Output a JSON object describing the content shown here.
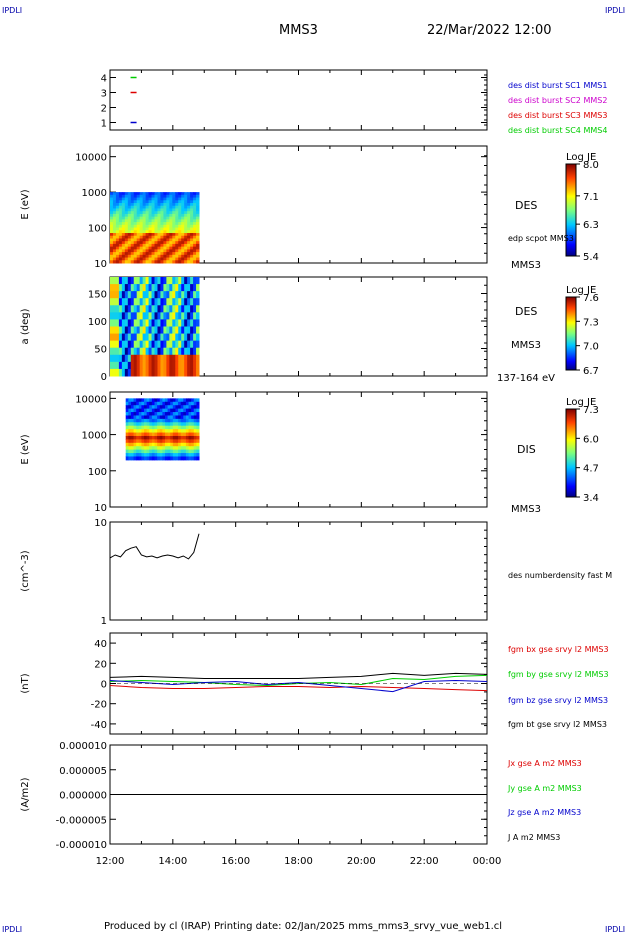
{
  "header": {
    "corner_label": "IPDLI",
    "spacecraft": "MMS3",
    "datetime": "22/Mar/2022 12:00"
  },
  "footer": {
    "text": "Produced by cl (IRAP)   Printing date: 02/Jan/2025   mms_mms3_srvy_vue_web1.cl"
  },
  "colors": {
    "blue": "#0000cc",
    "magenta": "#cc00cc",
    "red": "#dd0000",
    "green": "#00cc00",
    "black": "#000000"
  },
  "chart_data": [
    {
      "type": "scatter",
      "panel": "burst-mode",
      "ylim": [
        0.5,
        4.5
      ],
      "yticks": [
        "1",
        "2",
        "3",
        "4"
      ],
      "series": [
        {
          "name": "des dist burst SC1 MMS1",
          "color": "#0000cc",
          "x": [
            "12:45"
          ],
          "y": [
            1
          ]
        },
        {
          "name": "des dist burst SC2 MMS2",
          "color": "#cc00cc",
          "x": [],
          "y": []
        },
        {
          "name": "des dist burst SC3 MMS3",
          "color": "#dd0000",
          "x": [
            "12:45"
          ],
          "y": [
            3
          ]
        },
        {
          "name": "des dist burst SC4 MMS4",
          "color": "#00cc00",
          "x": [
            "12:45"
          ],
          "y": [
            4
          ]
        }
      ]
    },
    {
      "type": "heatmap",
      "panel": "des-energy",
      "ylabel": "E (eV)",
      "yscale": "log",
      "ylim": [
        10,
        20000
      ],
      "yticks": [
        "10",
        "100",
        "1000",
        "10000"
      ],
      "data_time_range": [
        "12:00",
        "14:50"
      ],
      "data_energy_range": [
        10,
        1000
      ],
      "label": "DES",
      "sublabel": "edp scpot MMS3",
      "spacecraft_label": "MMS3",
      "colorbar": {
        "title": "Log JE",
        "ticks": [
          "8.0",
          "7.1",
          "6.3",
          "5.4"
        ],
        "min": 5.4,
        "max": 8.0
      }
    },
    {
      "type": "heatmap",
      "panel": "des-pitch-angle",
      "ylabel": "a (deg)",
      "ylim": [
        0,
        180
      ],
      "yticks": [
        "0",
        "50",
        "100",
        "150"
      ],
      "data_time_range": [
        "12:00",
        "14:50"
      ],
      "label": "DES",
      "spacecraft_label": "MMS3",
      "energy_band": "137-164 eV",
      "colorbar": {
        "title": "Log JE",
        "ticks": [
          "7.6",
          "7.3",
          "7.0",
          "6.7"
        ],
        "min": 6.7,
        "max": 7.6
      }
    },
    {
      "type": "heatmap",
      "panel": "dis-energy",
      "ylabel": "E (eV)",
      "yscale": "log",
      "ylim": [
        10,
        15000
      ],
      "yticks": [
        "10",
        "100",
        "1000",
        "10000"
      ],
      "data_time_range": [
        "12:30",
        "14:50"
      ],
      "data_energy_range": [
        200,
        10000
      ],
      "label": "DIS",
      "spacecraft_label": "MMS3",
      "colorbar": {
        "title": "Log JE",
        "ticks": [
          "7.3",
          "6.0",
          "4.7",
          "3.4"
        ],
        "min": 3.4,
        "max": 7.3
      }
    },
    {
      "type": "line",
      "panel": "density",
      "ylabel": "(cm^-3)",
      "yscale": "log",
      "ylim": [
        1,
        10
      ],
      "yticks": [
        "1",
        "10"
      ],
      "series": [
        {
          "name": "des numberdensity fast M",
          "color": "#000000",
          "x": [
            "12:00",
            "12:10",
            "12:20",
            "12:30",
            "12:40",
            "12:50",
            "13:00",
            "13:10",
            "13:20",
            "13:30",
            "13:40",
            "13:50",
            "14:00",
            "14:10",
            "14:20",
            "14:30",
            "14:40",
            "14:50"
          ],
          "y": [
            4.3,
            4.6,
            4.4,
            5.1,
            5.4,
            5.6,
            4.6,
            4.4,
            4.5,
            4.3,
            4.5,
            4.6,
            4.5,
            4.3,
            4.5,
            4.2,
            4.9,
            7.6
          ]
        }
      ]
    },
    {
      "type": "line",
      "panel": "magnetic-field",
      "ylabel": "(nT)",
      "ylim": [
        -50,
        50
      ],
      "yticks": [
        "-40",
        "-20",
        "0",
        "20",
        "40"
      ],
      "series": [
        {
          "name": "fgm bx gse srvy l2 MMS3",
          "color": "#dd0000",
          "x": [
            "12:00",
            "13:00",
            "14:00",
            "15:00",
            "16:00",
            "17:00",
            "18:00",
            "19:00",
            "20:00",
            "21:00",
            "22:00",
            "23:00",
            "00:00"
          ],
          "y": [
            -2,
            -4,
            -5,
            -5,
            -4,
            -3,
            -3,
            -4,
            -3,
            -4,
            -5,
            -6,
            -7
          ]
        },
        {
          "name": "fgm by gse srvy l2 MMS3",
          "color": "#00cc00",
          "x": [
            "12:00",
            "13:00",
            "14:00",
            "15:00",
            "16:00",
            "17:00",
            "18:00",
            "19:00",
            "20:00",
            "21:00",
            "22:00",
            "23:00",
            "00:00"
          ],
          "y": [
            2,
            3,
            2,
            1,
            -1,
            -2,
            0,
            1,
            -1,
            5,
            4,
            7,
            8
          ]
        },
        {
          "name": "fgm bz gse srvy l2 MMS3",
          "color": "#0000cc",
          "x": [
            "12:00",
            "13:00",
            "14:00",
            "15:00",
            "16:00",
            "17:00",
            "18:00",
            "19:00",
            "20:00",
            "21:00",
            "22:00",
            "23:00",
            "00:00"
          ],
          "y": [
            3,
            1,
            -1,
            1,
            2,
            -1,
            1,
            -2,
            -5,
            -8,
            2,
            3,
            2
          ]
        },
        {
          "name": "fgm bt gse srvy l2 MMS3",
          "color": "#000000",
          "x": [
            "12:00",
            "13:00",
            "14:00",
            "15:00",
            "16:00",
            "17:00",
            "18:00",
            "19:00",
            "20:00",
            "21:00",
            "22:00",
            "23:00",
            "00:00"
          ],
          "y": [
            6,
            7,
            6,
            5,
            5,
            5,
            5,
            6,
            7,
            10,
            8,
            10,
            9
          ]
        }
      ]
    },
    {
      "type": "line",
      "panel": "current-density",
      "ylabel": "(A/m2)",
      "ylim": [
        -1e-05,
        1e-05
      ],
      "yticks": [
        "-0.000010",
        "-0.000005",
        "0.000000",
        "0.000005",
        "0.000010"
      ],
      "xticks": [
        "12:00",
        "14:00",
        "16:00",
        "18:00",
        "20:00",
        "22:00",
        "00:00"
      ],
      "series": [
        {
          "name": "Jx gse A m2 MMS3",
          "color": "#dd0000",
          "x": [],
          "y": []
        },
        {
          "name": "Jy gse A m2 MMS3",
          "color": "#00cc00",
          "x": [],
          "y": []
        },
        {
          "name": "Jz gse A m2 MMS3",
          "color": "#0000cc",
          "x": [],
          "y": []
        },
        {
          "name": "J A m2 MMS3",
          "color": "#000000",
          "x": [
            "12:00",
            "13:00",
            "14:00",
            "15:00",
            "16:00",
            "17:00",
            "18:00",
            "19:00",
            "20:00",
            "21:00",
            "22:00",
            "23:00",
            "00:00"
          ],
          "y": [
            0,
            0,
            0,
            0,
            0,
            0,
            0,
            0,
            0,
            0,
            0,
            0,
            0
          ]
        }
      ]
    }
  ]
}
